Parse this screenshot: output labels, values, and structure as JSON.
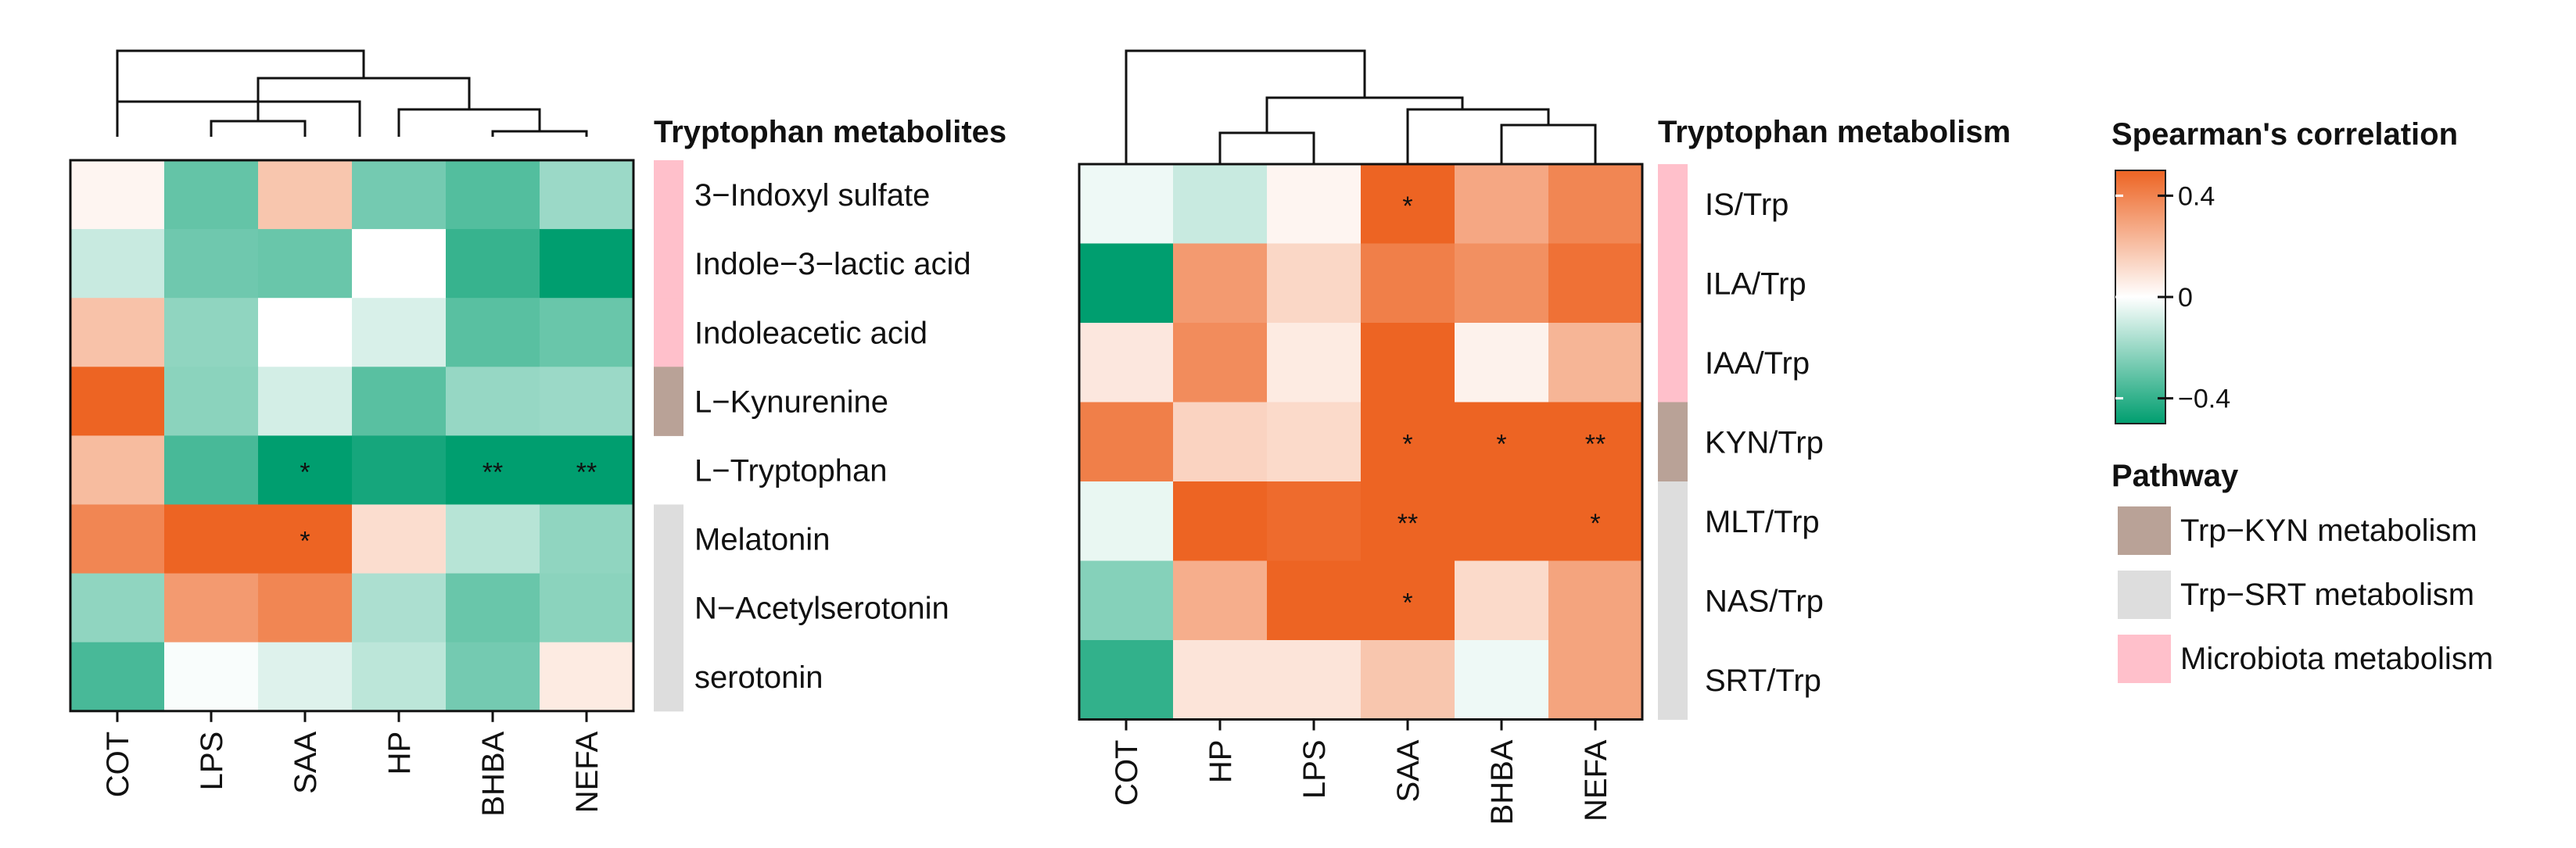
{
  "chart_data": [
    {
      "type": "heatmap",
      "title": "Tryptophan metabolites",
      "columns": [
        "COT",
        "LPS",
        "SAA",
        "HP",
        "BHBA",
        "NEFA"
      ],
      "rows": [
        {
          "label": "3−Indoxyl sulfate",
          "pathway": "Microbiota metabolism",
          "values": [
            0.03,
            -0.28,
            0.17,
            -0.25,
            -0.31,
            -0.18
          ],
          "stars": [
            "",
            "",
            "",
            "",
            "",
            ""
          ]
        },
        {
          "label": "Indole−3−lactic acid",
          "pathway": "Microbiota metabolism",
          "values": [
            -0.1,
            -0.26,
            -0.27,
            0.0,
            -0.36,
            -0.48
          ],
          "stars": [
            "",
            "",
            "",
            "",
            "",
            ""
          ]
        },
        {
          "label": "Indoleacetic acid",
          "pathway": "Microbiota metabolism",
          "values": [
            0.18,
            -0.2,
            0.0,
            -0.07,
            -0.3,
            -0.27
          ],
          "stars": [
            "",
            "",
            "",
            "",
            "",
            ""
          ]
        },
        {
          "label": "L−Kynurenine",
          "pathway": "Trp−KYN metabolism",
          "values": [
            0.46,
            -0.21,
            -0.08,
            -0.3,
            -0.19,
            -0.18
          ],
          "stars": [
            "",
            "",
            "",
            "",
            "",
            ""
          ]
        },
        {
          "label": "L−Tryptophan",
          "pathway": "",
          "values": [
            0.2,
            -0.33,
            -0.46,
            -0.42,
            -0.46,
            -0.46
          ],
          "stars": [
            "",
            "",
            "*",
            "",
            "**",
            "**"
          ]
        },
        {
          "label": "Melatonin",
          "pathway": "Trp−SRT metabolism",
          "values": [
            0.36,
            0.46,
            0.46,
            0.1,
            -0.13,
            -0.2
          ],
          "stars": [
            "",
            "",
            "*",
            "",
            "",
            ""
          ]
        },
        {
          "label": "N−Acetylserotonin",
          "pathway": "Trp−SRT metabolism",
          "values": [
            -0.2,
            0.3,
            0.36,
            -0.15,
            -0.27,
            -0.21
          ],
          "stars": [
            "",
            "",
            "",
            "",
            "",
            ""
          ]
        },
        {
          "label": "serotonin",
          "pathway": "Trp−SRT metabolism",
          "values": [
            -0.33,
            -0.01,
            -0.06,
            -0.12,
            -0.25,
            0.06
          ],
          "stars": [
            "",
            "",
            "",
            "",
            "",
            ""
          ]
        }
      ]
    },
    {
      "type": "heatmap",
      "title": "Tryptophan metabolism",
      "columns": [
        "COT",
        "HP",
        "LPS",
        "SAA",
        "BHBA",
        "NEFA"
      ],
      "rows": [
        {
          "label": "IS/Trp",
          "pathway": "Microbiota metabolism",
          "values": [
            -0.03,
            -0.1,
            0.03,
            0.46,
            0.26,
            0.36
          ],
          "stars": [
            "",
            "",
            "",
            "*",
            "",
            ""
          ]
        },
        {
          "label": "ILA/Trp",
          "pathway": "Microbiota metabolism",
          "values": [
            -0.46,
            0.3,
            0.12,
            0.38,
            0.33,
            0.42
          ],
          "stars": [
            "",
            "",
            "",
            "",
            "",
            ""
          ]
        },
        {
          "label": "IAA/Trp",
          "pathway": "Microbiota metabolism",
          "values": [
            0.07,
            0.34,
            0.06,
            0.46,
            0.04,
            0.22
          ],
          "stars": [
            "",
            "",
            "",
            "",
            "",
            ""
          ]
        },
        {
          "label": "KYN/Trp",
          "pathway": "Trp−KYN metabolism",
          "values": [
            0.38,
            0.13,
            0.11,
            0.46,
            0.46,
            0.46
          ],
          "stars": [
            "",
            "",
            "",
            "*",
            "*",
            "**"
          ]
        },
        {
          "label": "MLT/Trp",
          "pathway": "Trp−SRT metabolism",
          "values": [
            -0.04,
            0.46,
            0.44,
            0.46,
            0.46,
            0.46
          ],
          "stars": [
            "",
            "",
            "",
            "**",
            "",
            "*"
          ]
        },
        {
          "label": "NAS/Trp",
          "pathway": "Trp−SRT metabolism",
          "values": [
            -0.22,
            0.24,
            0.46,
            0.46,
            0.11,
            0.27
          ],
          "stars": [
            "",
            "",
            "",
            "*",
            "",
            ""
          ]
        },
        {
          "label": "SRT/Trp",
          "pathway": "Trp−SRT metabolism",
          "values": [
            -0.37,
            0.08,
            0.08,
            0.17,
            -0.03,
            0.27
          ],
          "stars": [
            "",
            "",
            "",
            "",
            "",
            ""
          ]
        }
      ]
    }
  ],
  "legend": {
    "colorbar_title": "Spearman's  correlation",
    "range": [
      -0.5,
      0.5
    ],
    "ticks": [
      {
        "value": 0.4,
        "label": "0.4"
      },
      {
        "value": 0,
        "label": "0"
      },
      {
        "value": -0.4,
        "label": "−0.4"
      }
    ],
    "pathway_title": "Pathway",
    "pathways": [
      {
        "label": "Trp−KYN metabolism",
        "color": "#b9a297"
      },
      {
        "label": "Trp−SRT metabolism",
        "color": "#dddddd"
      },
      {
        "label": "Microbiota metabolism",
        "color": "#ffc0cb"
      }
    ]
  },
  "colors": {
    "low": "#009e6f",
    "mid": "#ffffff",
    "high": "#ed6423"
  }
}
